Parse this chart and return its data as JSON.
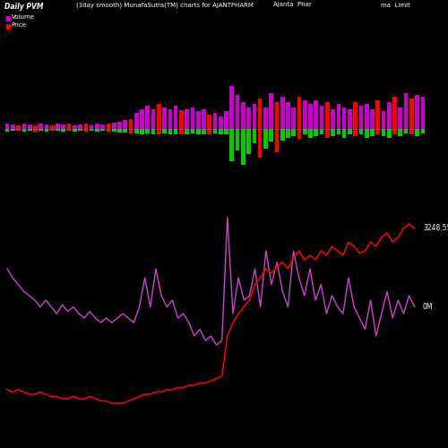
{
  "title_left": "Daily PVM",
  "title_center": "(3day smooth) MunafaSutra(TM) charts for AJANTPHARM",
  "title_right_1": "Ajanta  Phar",
  "title_right_2": "ma  Limit",
  "label_volume": "Volume",
  "label_price": "Price",
  "bg_color": "#000000",
  "bar_color_magenta": "#cc00cc",
  "bar_color_green": "#00cc00",
  "bar_color_red": "#ff0000",
  "line_color_volume": "#cc44cc",
  "line_color_price": "#ff0000",
  "annotation_volume": "0M",
  "annotation_price": "3248.55",
  "n_bars": 75,
  "vol_up": [
    0.08,
    0.06,
    0.05,
    0.07,
    0.06,
    0.05,
    0.07,
    0.06,
    0.05,
    0.08,
    0.06,
    0.07,
    0.05,
    0.06,
    0.07,
    0.05,
    0.08,
    0.06,
    0.07,
    0.09,
    0.1,
    0.12,
    0.14,
    0.22,
    0.28,
    0.32,
    0.28,
    0.35,
    0.3,
    0.28,
    0.32,
    0.26,
    0.28,
    0.3,
    0.25,
    0.28,
    0.2,
    0.22,
    0.18,
    0.25,
    0.6,
    0.48,
    0.38,
    0.3,
    0.35,
    0.42,
    0.3,
    0.5,
    0.38,
    0.45,
    0.38,
    0.3,
    0.45,
    0.4,
    0.35,
    0.4,
    0.32,
    0.38,
    0.28,
    0.35,
    0.3,
    0.28,
    0.38,
    0.32,
    0.35,
    0.28,
    0.4,
    0.25,
    0.38,
    0.45,
    0.3,
    0.5,
    0.42,
    0.48,
    0.45
  ],
  "vol_dn": [
    0.04,
    0.03,
    0.03,
    0.04,
    0.03,
    0.04,
    0.03,
    0.04,
    0.03,
    0.03,
    0.04,
    0.03,
    0.04,
    0.03,
    0.04,
    0.03,
    0.04,
    0.03,
    0.04,
    0.04,
    0.05,
    0.05,
    0.06,
    0.06,
    0.07,
    0.06,
    0.08,
    0.07,
    0.06,
    0.08,
    0.07,
    0.08,
    0.07,
    0.06,
    0.08,
    0.07,
    0.08,
    0.06,
    0.08,
    0.07,
    0.45,
    0.3,
    0.5,
    0.35,
    0.2,
    0.4,
    0.28,
    0.18,
    0.32,
    0.16,
    0.12,
    0.1,
    0.14,
    0.08,
    0.12,
    0.1,
    0.08,
    0.12,
    0.1,
    0.08,
    0.12,
    0.08,
    0.1,
    0.08,
    0.12,
    0.1,
    0.08,
    0.1,
    0.12,
    0.08,
    0.1,
    0.06,
    0.08,
    0.1,
    0.06
  ],
  "bar_is_red": [
    0,
    0,
    1,
    0,
    0,
    1,
    0,
    0,
    1,
    0,
    0,
    1,
    0,
    0,
    1,
    0,
    0,
    0,
    1,
    0,
    0,
    0,
    1,
    0,
    0,
    0,
    0,
    1,
    0,
    0,
    0,
    1,
    0,
    0,
    0,
    0,
    1,
    0,
    0,
    0,
    0,
    0,
    0,
    0,
    0,
    1,
    0,
    0,
    1,
    0,
    0,
    0,
    1,
    0,
    0,
    0,
    0,
    1,
    0,
    0,
    0,
    0,
    1,
    0,
    0,
    0,
    1,
    0,
    0,
    1,
    0,
    0,
    1,
    0,
    0
  ],
  "mag_line": [
    0.72,
    0.68,
    0.65,
    0.62,
    0.6,
    0.58,
    0.55,
    0.58,
    0.55,
    0.52,
    0.56,
    0.53,
    0.55,
    0.52,
    0.5,
    0.53,
    0.5,
    0.48,
    0.5,
    0.48,
    0.5,
    0.52,
    0.5,
    0.48,
    0.55,
    0.68,
    0.55,
    0.72,
    0.6,
    0.55,
    0.58,
    0.5,
    0.52,
    0.48,
    0.42,
    0.45,
    0.4,
    0.42,
    0.38,
    0.4,
    0.95,
    0.52,
    0.68,
    0.58,
    0.6,
    0.72,
    0.55,
    0.8,
    0.65,
    0.75,
    0.62,
    0.55,
    0.8,
    0.68,
    0.6,
    0.72,
    0.58,
    0.65,
    0.52,
    0.6,
    0.55,
    0.52,
    0.68,
    0.55,
    0.5,
    0.45,
    0.58,
    0.42,
    0.52,
    0.62,
    0.5,
    0.58,
    0.52,
    0.6,
    0.55
  ],
  "price_line": [
    0.18,
    0.17,
    0.18,
    0.17,
    0.16,
    0.16,
    0.17,
    0.16,
    0.15,
    0.15,
    0.14,
    0.14,
    0.15,
    0.14,
    0.14,
    0.15,
    0.14,
    0.13,
    0.13,
    0.12,
    0.12,
    0.12,
    0.13,
    0.14,
    0.15,
    0.16,
    0.16,
    0.17,
    0.17,
    0.18,
    0.18,
    0.19,
    0.19,
    0.2,
    0.2,
    0.21,
    0.21,
    0.22,
    0.23,
    0.24,
    0.42,
    0.48,
    0.52,
    0.55,
    0.58,
    0.65,
    0.68,
    0.72,
    0.7,
    0.73,
    0.75,
    0.72,
    0.77,
    0.8,
    0.76,
    0.78,
    0.76,
    0.8,
    0.78,
    0.82,
    0.8,
    0.78,
    0.84,
    0.82,
    0.79,
    0.8,
    0.84,
    0.82,
    0.86,
    0.88,
    0.84,
    0.86,
    0.9,
    0.92,
    0.9
  ]
}
